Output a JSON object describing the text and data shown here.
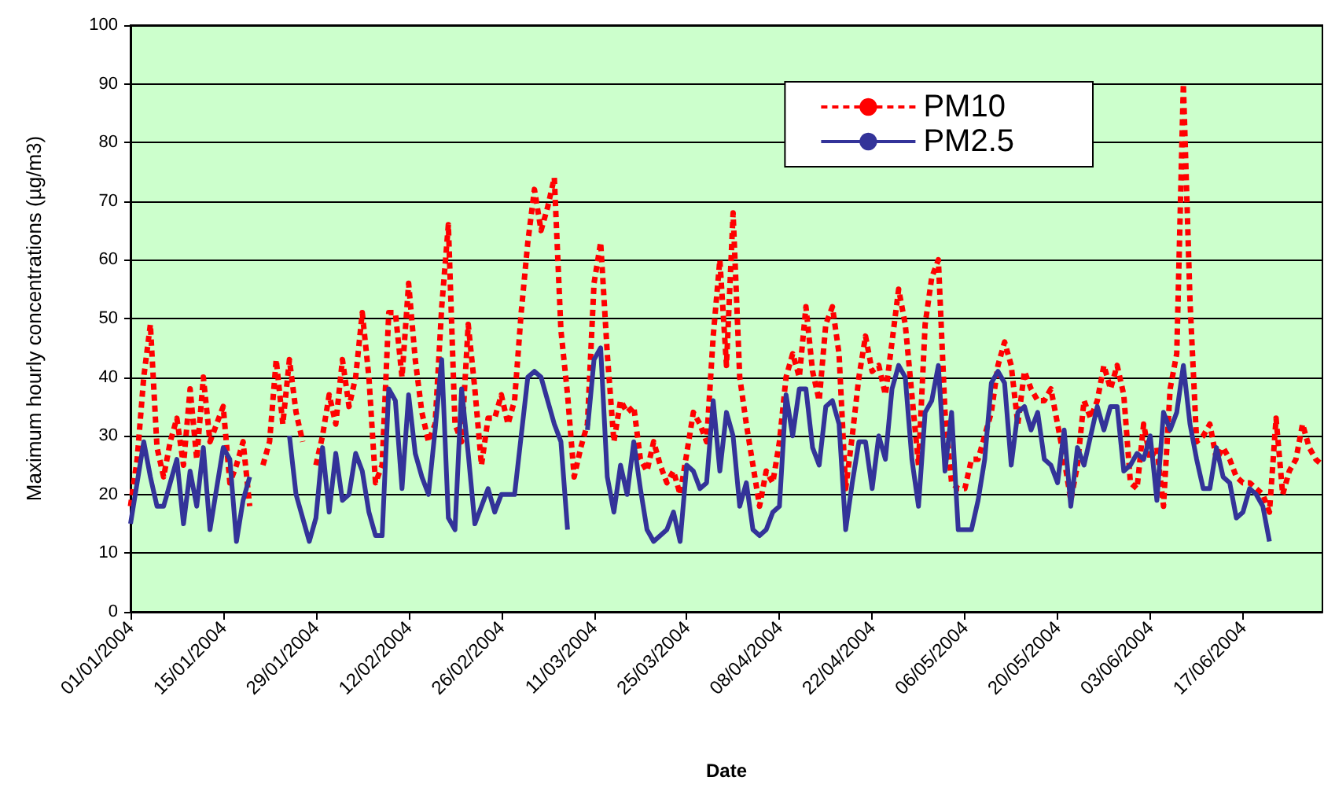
{
  "chart_data": {
    "type": "line",
    "xlabel": "Date",
    "ylabel": "Maximum hourly concentrations (µg/m3)",
    "categories": [
      "01/01/2004",
      null,
      null,
      null,
      null,
      null,
      null,
      null,
      null,
      null,
      null,
      null,
      null,
      null,
      "15/01/2004",
      null,
      null,
      null,
      null,
      null,
      null,
      null,
      null,
      null,
      null,
      null,
      null,
      null,
      "29/01/2004",
      null,
      null,
      null,
      null,
      null,
      null,
      null,
      null,
      null,
      null,
      null,
      null,
      null,
      "12/02/2004",
      null,
      null,
      null,
      null,
      null,
      null,
      null,
      null,
      null,
      null,
      null,
      null,
      null,
      "26/02/2004",
      null,
      null,
      null,
      null,
      null,
      null,
      null,
      null,
      null,
      null,
      null,
      null,
      null,
      "11/03/2004",
      null,
      null,
      null,
      null,
      null,
      null,
      null,
      null,
      null,
      null,
      null,
      null,
      null,
      "25/03/2004",
      null,
      null,
      null,
      null,
      null,
      null,
      null,
      null,
      null,
      null,
      null,
      null,
      null,
      "08/04/2004",
      null,
      null,
      null,
      null,
      null,
      null,
      null,
      null,
      null,
      null,
      null,
      null,
      null,
      "22/04/2004",
      null,
      null,
      null,
      null,
      null,
      null,
      null,
      null,
      null,
      null,
      null,
      null,
      null,
      "06/05/2004",
      null,
      null,
      null,
      null,
      null,
      null,
      null,
      null,
      null,
      null,
      null,
      null,
      null,
      "20/05/2004",
      null,
      null,
      null,
      null,
      null,
      null,
      null,
      null,
      null,
      null,
      null,
      null,
      null,
      "03/06/2004",
      null,
      null,
      null,
      null,
      null,
      null,
      null,
      null,
      null,
      null,
      null,
      null,
      null,
      "17/06/2004",
      null,
      null,
      null,
      null,
      null,
      null,
      null,
      null,
      null,
      null,
      null,
      null
    ],
    "series": [
      {
        "name": "PM10",
        "color": "#ff0000",
        "line_style": "dashed",
        "values": [
          18,
          26,
          40,
          49,
          28,
          23,
          29,
          33,
          25,
          38,
          26,
          40,
          29,
          32,
          35,
          22,
          25,
          29,
          18,
          null,
          25,
          29,
          43,
          32,
          43,
          34,
          29,
          null,
          25,
          30,
          37,
          32,
          43,
          35,
          40,
          51,
          40,
          22,
          25,
          51,
          51,
          40,
          56,
          43,
          34,
          29,
          32,
          52,
          66,
          32,
          29,
          49,
          38,
          25,
          33,
          33,
          37,
          32,
          36,
          51,
          63,
          72,
          65,
          69,
          74,
          48,
          37,
          23,
          28,
          32,
          56,
          63,
          44,
          29,
          36,
          34,
          35,
          26,
          24,
          29,
          25,
          22,
          24,
          20,
          27,
          34,
          32,
          29,
          47,
          60,
          42,
          68,
          40,
          32,
          25,
          18,
          24,
          22,
          29,
          40,
          44,
          40,
          52,
          41,
          36,
          49,
          52,
          44,
          21,
          30,
          40,
          47,
          41,
          42,
          37,
          46,
          55,
          49,
          37,
          25,
          49,
          57,
          60,
          34,
          22,
          21,
          21,
          26,
          26,
          30,
          34,
          42,
          46,
          42,
          32,
          41,
          38,
          36,
          36,
          38,
          32,
          26,
          19,
          25,
          36,
          33,
          36,
          42,
          38,
          42,
          37,
          22,
          21,
          32,
          26,
          28,
          18,
          38,
          44,
          90,
          53,
          29,
          30,
          32,
          26,
          28,
          26,
          23,
          22,
          22,
          21,
          20,
          17,
          33,
          20,
          24,
          26,
          32,
          28,
          26,
          25
        ]
      },
      {
        "name": "PM2.5",
        "color": "#333399",
        "line_style": "solid",
        "values": [
          15,
          22,
          29,
          23,
          18,
          18,
          22,
          26,
          15,
          24,
          18,
          28,
          14,
          21,
          28,
          26,
          12,
          19,
          23,
          null,
          null,
          null,
          null,
          null,
          30,
          20,
          16,
          12,
          16,
          28,
          17,
          27,
          19,
          20,
          27,
          24,
          17,
          13,
          13,
          38,
          36,
          21,
          37,
          27,
          23,
          20,
          31,
          43,
          16,
          14,
          38,
          27,
          15,
          18,
          21,
          17,
          20,
          20,
          20,
          30,
          40,
          41,
          40,
          36,
          32,
          29,
          14,
          null,
          null,
          31,
          43,
          45,
          23,
          17,
          25,
          20,
          29,
          21,
          14,
          12,
          13,
          14,
          17,
          12,
          25,
          24,
          21,
          22,
          36,
          24,
          34,
          30,
          18,
          22,
          14,
          13,
          14,
          17,
          18,
          37,
          30,
          38,
          38,
          28,
          25,
          35,
          36,
          32,
          14,
          22,
          29,
          29,
          21,
          30,
          26,
          38,
          42,
          40,
          26,
          18,
          34,
          36,
          42,
          24,
          34,
          14,
          14,
          14,
          19,
          26,
          39,
          41,
          39,
          25,
          34,
          35,
          31,
          34,
          26,
          25,
          22,
          31,
          18,
          28,
          25,
          30,
          35,
          31,
          35,
          35,
          24,
          25,
          27,
          26,
          30,
          19,
          34,
          31,
          34,
          42,
          32,
          26,
          21,
          21,
          28,
          23,
          22,
          16,
          17,
          21,
          20,
          18,
          12,
          null,
          null,
          null,
          null,
          null,
          null,
          null,
          null
        ]
      }
    ],
    "ylim": [
      0,
      100
    ],
    "yticks": [
      0,
      10,
      20,
      30,
      40,
      50,
      60,
      70,
      80,
      90,
      100
    ],
    "grid": "y",
    "legend": "top right",
    "marker": "none"
  }
}
